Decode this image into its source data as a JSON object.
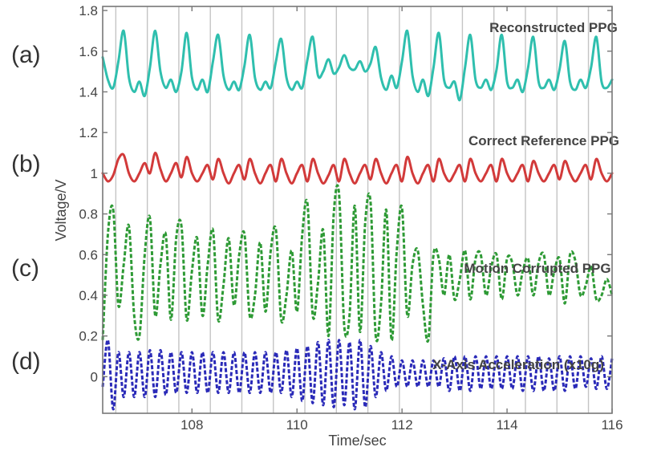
{
  "chart_data": {
    "type": "line",
    "title": "",
    "xlabel": "Time/sec",
    "ylabel": "Voltage/V",
    "xlim": [
      106.3,
      116.0
    ],
    "ylim": [
      -0.18,
      1.82
    ],
    "xticks": [
      108,
      110,
      112,
      114,
      116
    ],
    "yticks": [
      0,
      0.2,
      0.4,
      0.6,
      0.8,
      1,
      1.2,
      1.4,
      1.6,
      1.8
    ],
    "ytick_labels": [
      "0",
      "0.2",
      "0.4",
      "0.6",
      "0.8",
      "1",
      "1.2",
      "1.4",
      "1.6",
      "1.8"
    ],
    "grid": "vertical lines at heartbeat times",
    "beat_times": [
      106.55,
      107.15,
      107.75,
      108.35,
      108.95,
      109.55,
      110.15,
      110.75,
      111.35,
      111.95,
      112.55,
      113.15,
      113.75,
      114.35,
      114.95,
      115.55
    ],
    "panel_labels": [
      "(a)",
      "(b)",
      "(c)",
      "(d)"
    ],
    "series": [
      {
        "name": "Reconstructed PPG",
        "color": "#2fbfae",
        "style": "solid",
        "x": [
          106.3,
          106.4,
          106.5,
          106.6,
          106.7,
          106.8,
          106.9,
          107.0,
          107.1,
          107.2,
          107.3,
          107.4,
          107.5,
          107.6,
          107.7,
          107.8,
          107.9,
          108.0,
          108.1,
          108.2,
          108.3,
          108.4,
          108.5,
          108.6,
          108.7,
          108.8,
          108.9,
          109.0,
          109.1,
          109.2,
          109.3,
          109.4,
          109.5,
          109.6,
          109.7,
          109.8,
          109.9,
          110.0,
          110.1,
          110.2,
          110.3,
          110.4,
          110.5,
          110.6,
          110.7,
          110.8,
          110.9,
          111.0,
          111.1,
          111.2,
          111.3,
          111.4,
          111.5,
          111.6,
          111.7,
          111.8,
          111.9,
          112.0,
          112.1,
          112.2,
          112.3,
          112.4,
          112.5,
          112.6,
          112.7,
          112.8,
          112.9,
          113.0,
          113.1,
          113.2,
          113.3,
          113.4,
          113.5,
          113.6,
          113.7,
          113.8,
          113.9,
          114.0,
          114.1,
          114.2,
          114.3,
          114.4,
          114.5,
          114.6,
          114.7,
          114.8,
          114.9,
          115.0,
          115.1,
          115.2,
          115.3,
          115.4,
          115.5,
          115.6,
          115.7,
          115.8,
          115.9,
          116.0
        ],
        "y": [
          1.57,
          1.46,
          1.42,
          1.55,
          1.7,
          1.47,
          1.4,
          1.45,
          1.38,
          1.52,
          1.7,
          1.5,
          1.42,
          1.46,
          1.4,
          1.5,
          1.69,
          1.47,
          1.41,
          1.46,
          1.4,
          1.55,
          1.68,
          1.48,
          1.41,
          1.45,
          1.41,
          1.53,
          1.68,
          1.47,
          1.41,
          1.45,
          1.42,
          1.55,
          1.66,
          1.47,
          1.41,
          1.45,
          1.42,
          1.56,
          1.67,
          1.48,
          1.5,
          1.56,
          1.49,
          1.52,
          1.58,
          1.52,
          1.51,
          1.55,
          1.5,
          1.54,
          1.62,
          1.47,
          1.41,
          1.48,
          1.42,
          1.55,
          1.7,
          1.48,
          1.4,
          1.46,
          1.38,
          1.52,
          1.69,
          1.46,
          1.42,
          1.45,
          1.36,
          1.52,
          1.68,
          1.46,
          1.42,
          1.46,
          1.41,
          1.51,
          1.68,
          1.45,
          1.42,
          1.46,
          1.4,
          1.52,
          1.67,
          1.45,
          1.42,
          1.46,
          1.41,
          1.51,
          1.65,
          1.45,
          1.41,
          1.46,
          1.42,
          1.52,
          1.67,
          1.45,
          1.42,
          1.46
        ]
      },
      {
        "name": "Correct Reference PPG",
        "color": "#d23a3a",
        "style": "solid",
        "x": [
          106.3,
          106.4,
          106.5,
          106.6,
          106.7,
          106.8,
          106.9,
          107.0,
          107.1,
          107.2,
          107.3,
          107.4,
          107.5,
          107.6,
          107.7,
          107.8,
          107.9,
          108.0,
          108.1,
          108.2,
          108.3,
          108.4,
          108.5,
          108.6,
          108.7,
          108.8,
          108.9,
          109.0,
          109.1,
          109.2,
          109.3,
          109.4,
          109.5,
          109.6,
          109.7,
          109.8,
          109.9,
          110.0,
          110.1,
          110.2,
          110.3,
          110.4,
          110.5,
          110.6,
          110.7,
          110.8,
          110.9,
          111.0,
          111.1,
          111.2,
          111.3,
          111.4,
          111.5,
          111.6,
          111.7,
          111.8,
          111.9,
          112.0,
          112.1,
          112.2,
          112.3,
          112.4,
          112.5,
          112.6,
          112.7,
          112.8,
          112.9,
          113.0,
          113.1,
          113.2,
          113.3,
          113.4,
          113.5,
          113.6,
          113.7,
          113.8,
          113.9,
          114.0,
          114.1,
          114.2,
          114.3,
          114.4,
          114.5,
          114.6,
          114.7,
          114.8,
          114.9,
          115.0,
          115.1,
          115.2,
          115.3,
          115.4,
          115.5,
          115.6,
          115.7,
          115.8,
          115.9,
          116.0
        ],
        "y": [
          1.0,
          0.96,
          0.99,
          1.07,
          1.09,
          1.0,
          0.96,
          1.0,
          1.05,
          1.0,
          1.1,
          1.02,
          0.96,
          1.0,
          1.05,
          0.98,
          1.08,
          1.0,
          0.96,
          1.0,
          1.04,
          0.97,
          1.07,
          1.0,
          0.95,
          1.0,
          1.04,
          0.97,
          1.07,
          1.0,
          0.95,
          1.0,
          1.04,
          0.96,
          1.07,
          1.0,
          0.95,
          1.0,
          1.04,
          0.96,
          1.07,
          1.0,
          0.95,
          0.99,
          1.04,
          0.96,
          1.07,
          1.0,
          0.95,
          1.0,
          1.04,
          0.97,
          1.07,
          1.0,
          0.95,
          1.0,
          1.04,
          0.96,
          1.08,
          1.0,
          0.95,
          1.0,
          1.04,
          0.96,
          1.07,
          1.0,
          0.96,
          1.0,
          1.04,
          0.96,
          1.07,
          1.0,
          0.96,
          1.0,
          1.04,
          0.96,
          1.07,
          1.0,
          0.96,
          1.0,
          1.04,
          0.96,
          1.06,
          1.0,
          0.96,
          1.0,
          1.04,
          0.97,
          1.06,
          1.0,
          0.96,
          1.0,
          1.04,
          0.97,
          1.07,
          1.0,
          0.96,
          1.0
        ]
      },
      {
        "name": "Motion Corrupted PPG",
        "color": "#2e9a35",
        "style": "dashed",
        "x": [
          106.3,
          106.4,
          106.5,
          106.6,
          106.7,
          106.8,
          106.9,
          107.0,
          107.1,
          107.2,
          107.3,
          107.4,
          107.5,
          107.6,
          107.7,
          107.8,
          107.9,
          108.0,
          108.1,
          108.2,
          108.3,
          108.4,
          108.5,
          108.6,
          108.7,
          108.8,
          108.9,
          109.0,
          109.1,
          109.2,
          109.3,
          109.4,
          109.5,
          109.6,
          109.7,
          109.8,
          109.9,
          110.0,
          110.1,
          110.2,
          110.3,
          110.4,
          110.5,
          110.6,
          110.7,
          110.8,
          110.9,
          111.0,
          111.1,
          111.2,
          111.3,
          111.4,
          111.5,
          111.6,
          111.7,
          111.8,
          111.9,
          112.0,
          112.1,
          112.2,
          112.3,
          112.4,
          112.5,
          112.6,
          112.7,
          112.8,
          112.9,
          113.0,
          113.1,
          113.2,
          113.3,
          113.4,
          113.5,
          113.6,
          113.7,
          113.8,
          113.9,
          114.0,
          114.1,
          114.2,
          114.3,
          114.4,
          114.5,
          114.6,
          114.7,
          114.8,
          114.9,
          115.0,
          115.1,
          115.2,
          115.3,
          115.4,
          115.5,
          115.6,
          115.7,
          115.8,
          115.9,
          116.0
        ],
        "y": [
          0.18,
          0.7,
          0.82,
          0.35,
          0.55,
          0.74,
          0.3,
          0.2,
          0.6,
          0.78,
          0.3,
          0.55,
          0.7,
          0.28,
          0.68,
          0.74,
          0.28,
          0.52,
          0.68,
          0.3,
          0.55,
          0.72,
          0.28,
          0.45,
          0.68,
          0.35,
          0.6,
          0.7,
          0.3,
          0.4,
          0.66,
          0.32,
          0.62,
          0.72,
          0.28,
          0.4,
          0.62,
          0.32,
          0.7,
          0.85,
          0.3,
          0.46,
          0.72,
          0.2,
          0.8,
          0.9,
          0.25,
          0.3,
          0.84,
          0.22,
          0.76,
          0.86,
          0.2,
          0.36,
          0.82,
          0.18,
          0.62,
          0.83,
          0.3,
          0.55,
          0.62,
          0.35,
          0.18,
          0.6,
          0.58,
          0.4,
          0.6,
          0.38,
          0.48,
          0.62,
          0.38,
          0.58,
          0.6,
          0.4,
          0.54,
          0.6,
          0.38,
          0.58,
          0.56,
          0.4,
          0.52,
          0.58,
          0.4,
          0.56,
          0.6,
          0.4,
          0.52,
          0.58,
          0.36,
          0.6,
          0.57,
          0.4,
          0.45,
          0.54,
          0.38,
          0.4,
          0.48,
          0.4
        ]
      },
      {
        "name": "X-Axis Acceleration (x10g)",
        "color": "#2a2ab8",
        "style": "dashed",
        "x": [
          106.3,
          106.4,
          106.5,
          106.6,
          106.7,
          106.8,
          106.9,
          107.0,
          107.1,
          107.2,
          107.3,
          107.4,
          107.5,
          107.6,
          107.7,
          107.8,
          107.9,
          108.0,
          108.1,
          108.2,
          108.3,
          108.4,
          108.5,
          108.6,
          108.7,
          108.8,
          108.9,
          109.0,
          109.1,
          109.2,
          109.3,
          109.4,
          109.5,
          109.6,
          109.7,
          109.8,
          109.9,
          110.0,
          110.1,
          110.2,
          110.3,
          110.4,
          110.5,
          110.6,
          110.7,
          110.8,
          110.9,
          111.0,
          111.1,
          111.2,
          111.3,
          111.4,
          111.5,
          111.6,
          111.7,
          111.8,
          111.9,
          112.0,
          112.1,
          112.2,
          112.3,
          112.4,
          112.5,
          112.6,
          112.7,
          112.8,
          112.9,
          113.0,
          113.1,
          113.2,
          113.3,
          113.4,
          113.5,
          113.6,
          113.7,
          113.8,
          113.9,
          114.0,
          114.1,
          114.2,
          114.3,
          114.4,
          114.5,
          114.6,
          114.7,
          114.8,
          114.9,
          115.0,
          115.1,
          115.2,
          115.3,
          115.4,
          115.5,
          115.6,
          115.7,
          115.8,
          115.9,
          116.0
        ],
        "y": [
          -0.05,
          0.18,
          -0.16,
          0.12,
          -0.1,
          0.12,
          -0.1,
          0.12,
          -0.1,
          0.13,
          -0.1,
          0.13,
          -0.09,
          0.12,
          -0.08,
          0.12,
          -0.08,
          0.12,
          -0.08,
          0.12,
          -0.08,
          0.12,
          -0.08,
          0.12,
          -0.08,
          0.12,
          -0.08,
          0.12,
          -0.08,
          0.12,
          -0.08,
          0.12,
          -0.08,
          0.12,
          -0.08,
          0.13,
          -0.1,
          0.14,
          -0.12,
          0.15,
          -0.13,
          0.17,
          -0.14,
          0.18,
          -0.15,
          0.18,
          -0.14,
          0.17,
          -0.16,
          0.18,
          -0.15,
          0.15,
          -0.1,
          0.12,
          -0.07,
          0.1,
          -0.05,
          0.08,
          -0.05,
          0.08,
          -0.05,
          0.08,
          -0.05,
          0.08,
          -0.05,
          0.09,
          -0.07,
          0.1,
          -0.07,
          0.1,
          -0.07,
          0.1,
          -0.06,
          0.1,
          -0.06,
          0.1,
          -0.06,
          0.1,
          -0.06,
          0.1,
          -0.07,
          0.1,
          -0.07,
          0.1,
          -0.07,
          0.09,
          -0.07,
          0.1,
          -0.07,
          0.1,
          -0.06,
          0.1,
          -0.05,
          0.09,
          -0.06,
          0.1,
          -0.06,
          0.09
        ]
      }
    ]
  }
}
